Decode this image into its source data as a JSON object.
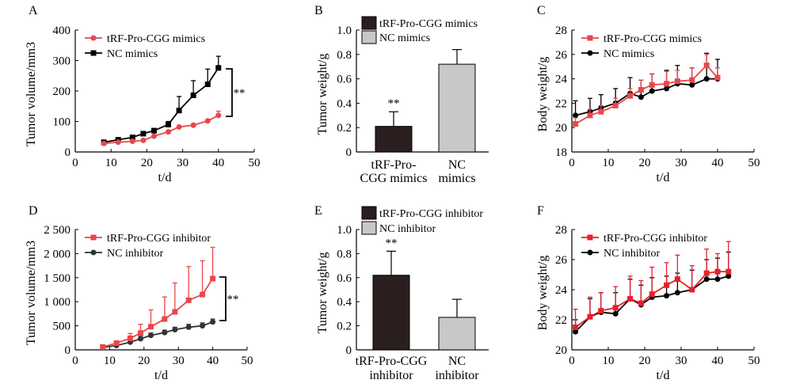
{
  "chart_data": [
    {
      "panel": "A",
      "type": "line",
      "xlabel": "t/d",
      "ylabel": "Tumor volume/mm3",
      "xlim": [
        0,
        50
      ],
      "ylim": [
        0,
        400
      ],
      "xticks": [
        "0",
        "10",
        "20",
        "30",
        "40",
        "50"
      ],
      "yticks": [
        "0",
        "100",
        "200",
        "300",
        "400"
      ],
      "legend_position": "top-left",
      "significance": "**",
      "series": [
        {
          "name": "tRF-Pro-CGG mimics",
          "color": "#e8474b",
          "marker": "circle",
          "x": [
            8,
            12,
            16,
            19,
            22,
            26,
            29,
            33,
            37,
            40
          ],
          "y": [
            28,
            32,
            35,
            38,
            52,
            66,
            82,
            88,
            102,
            120
          ],
          "err": [
            0,
            0,
            0,
            0,
            0,
            0,
            0,
            0,
            0,
            14
          ]
        },
        {
          "name": "NC mimics",
          "color": "#000000",
          "marker": "square",
          "x": [
            8,
            12,
            16,
            19,
            22,
            26,
            29,
            33,
            37,
            40
          ],
          "y": [
            32,
            40,
            48,
            60,
            70,
            90,
            136,
            186,
            222,
            276
          ],
          "err": [
            0,
            0,
            0,
            0,
            0,
            10,
            46,
            48,
            50,
            38
          ]
        }
      ]
    },
    {
      "panel": "B",
      "type": "bar",
      "ylabel": "Tumor weight/g",
      "ylim": [
        0,
        1.0
      ],
      "yticks": [
        "0",
        "0.2",
        "0.4",
        "0.6",
        "0.8",
        "1.0"
      ],
      "categories": [
        "tRF-Pro-CGG mimics",
        "NC mimics"
      ],
      "category_lines": [
        [
          "tRF-Pro-",
          "CGG mimics"
        ],
        [
          "NC",
          "mimics"
        ]
      ],
      "values": [
        0.21,
        0.72
      ],
      "err": [
        0.12,
        0.12
      ],
      "colors": [
        "#2b1e1e",
        "#c8c8c8"
      ],
      "legend": [
        "tRF-Pro-CGG mimics",
        "NC mimics"
      ],
      "significance": [
        "**",
        ""
      ]
    },
    {
      "panel": "C",
      "type": "line",
      "xlabel": "t/d",
      "ylabel": "Body weight/g",
      "xlim": [
        0,
        50
      ],
      "ylim": [
        18,
        28
      ],
      "xticks": [
        "0",
        "10",
        "20",
        "30",
        "40",
        "50"
      ],
      "yticks": [
        "18",
        "20",
        "22",
        "24",
        "26",
        "28"
      ],
      "legend_position": "top-left",
      "series": [
        {
          "name": "tRF-Pro-CGG mimics",
          "color": "#e8474b",
          "marker": "square",
          "x": [
            1,
            5,
            8,
            12,
            16,
            19,
            22,
            26,
            29,
            33,
            37,
            40
          ],
          "y": [
            20.3,
            21.0,
            21.3,
            21.8,
            22.6,
            23.1,
            23.5,
            23.6,
            23.8,
            23.9,
            25.1,
            24.1
          ],
          "err": [
            0.5,
            0.5,
            0.5,
            0.6,
            0.6,
            0.8,
            0.9,
            1.0,
            0.9,
            1.0,
            0.9,
            0.8
          ]
        },
        {
          "name": "NC mimics",
          "color": "#000000",
          "marker": "circle",
          "x": [
            1,
            5,
            8,
            12,
            16,
            19,
            22,
            26,
            29,
            33,
            37,
            40
          ],
          "y": [
            21.0,
            21.3,
            21.6,
            22.0,
            22.8,
            22.5,
            23.0,
            23.2,
            23.6,
            23.5,
            24.0,
            24.0
          ],
          "err": [
            1.2,
            1.1,
            1.1,
            1.2,
            1.3,
            1.4,
            1.4,
            1.5,
            1.5,
            1.4,
            2.1,
            1.6
          ]
        }
      ]
    },
    {
      "panel": "D",
      "type": "line",
      "xlabel": "t/d",
      "ylabel": "Tumor volume/mm3",
      "xlim": [
        0,
        50
      ],
      "ylim": [
        0,
        2500
      ],
      "xticks": [
        "0",
        "10",
        "20",
        "30",
        "40",
        "50"
      ],
      "yticks": [
        "0",
        "500",
        "1 000",
        "1 500",
        "2 000",
        "2 500"
      ],
      "legend_position": "top-left",
      "significance": "**",
      "series": [
        {
          "name": "tRF-Pro-CGG inhibitor",
          "color": "#e8474b",
          "marker": "square",
          "x": [
            8,
            12,
            16,
            19,
            22,
            26,
            29,
            33,
            37,
            40
          ],
          "y": [
            60,
            140,
            240,
            350,
            480,
            640,
            790,
            1030,
            1150,
            1480
          ],
          "err": [
            0,
            0,
            100,
            180,
            350,
            460,
            600,
            700,
            700,
            650
          ]
        },
        {
          "name": "NC inhibitor",
          "color": "#333333",
          "marker": "circle",
          "x": [
            8,
            12,
            16,
            19,
            22,
            26,
            29,
            33,
            37,
            40
          ],
          "y": [
            50,
            90,
            160,
            230,
            300,
            360,
            420,
            470,
            500,
            580
          ],
          "err": [
            0,
            0,
            50,
            50,
            50,
            50,
            50,
            60,
            60,
            60
          ]
        }
      ]
    },
    {
      "panel": "E",
      "type": "bar",
      "ylabel": "Tumor weight/g",
      "ylim": [
        0,
        1.0
      ],
      "yticks": [
        "0",
        "0.2",
        "0.4",
        "0.6",
        "0.8",
        "1.0"
      ],
      "categories": [
        "tRF-Pro-CGG inhibitor",
        "NC inhibitor"
      ],
      "category_lines": [
        [
          "tRF-Pro-CGG",
          "inhibitor"
        ],
        [
          "NC",
          "inhibitor"
        ]
      ],
      "values": [
        0.62,
        0.27
      ],
      "err": [
        0.2,
        0.15
      ],
      "colors": [
        "#2b1e1e",
        "#c8c8c8"
      ],
      "legend": [
        "tRF-Pro-CGG inhibitor",
        "NC inhibitor"
      ],
      "significance": [
        "**",
        ""
      ]
    },
    {
      "panel": "F",
      "type": "line",
      "xlabel": "t/d",
      "ylabel": "Body weight/g",
      "xlim": [
        0,
        50
      ],
      "ylim": [
        20,
        28
      ],
      "xticks": [
        "0",
        "10",
        "20",
        "30",
        "40",
        "50"
      ],
      "yticks": [
        "20",
        "22",
        "24",
        "26",
        "28"
      ],
      "legend_position": "top-left",
      "series": [
        {
          "name": "tRF-Pro-CGG inhibitor",
          "color": "#e8202a",
          "marker": "square",
          "x": [
            1,
            5,
            8,
            12,
            16,
            19,
            22,
            26,
            29,
            33,
            37,
            40,
            43
          ],
          "y": [
            21.5,
            22.2,
            22.6,
            22.8,
            23.4,
            23.1,
            23.7,
            24.3,
            24.7,
            24.0,
            25.1,
            25.2,
            25.2
          ],
          "err": [
            1.2,
            1.3,
            1.2,
            1.4,
            1.5,
            1.5,
            1.8,
            1.5,
            1.6,
            1.6,
            1.6,
            1.2,
            2.0
          ]
        },
        {
          "name": "NC inhibitor",
          "color": "#000000",
          "marker": "circle",
          "x": [
            1,
            5,
            8,
            12,
            16,
            19,
            22,
            26,
            29,
            33,
            37,
            40,
            43
          ],
          "y": [
            21.2,
            22.2,
            22.5,
            22.4,
            23.4,
            23.0,
            23.5,
            23.6,
            23.8,
            24.0,
            24.7,
            24.7,
            24.9
          ],
          "err": [
            0.8,
            1.2,
            1.3,
            1.4,
            1.3,
            1.3,
            1.3,
            1.3,
            1.3,
            1.3,
            1.3,
            1.4,
            1.6
          ]
        }
      ]
    }
  ]
}
